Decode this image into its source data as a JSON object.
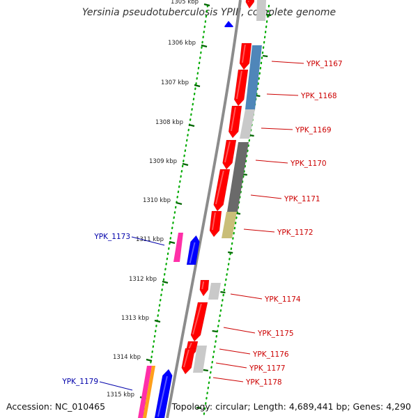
{
  "title": "Yersinia pseudotuberculosis YPIII, complete genome",
  "footer": {
    "accession": "Accession: NC_010465",
    "topology": "Topology: circular; Length: 4,689,441 bp; Genes: 4,290"
  },
  "colors": {
    "forward_gene": "#ff0000",
    "reverse_gene": "#0000ff",
    "backbone": "#8c8c8c",
    "tick": "#006600",
    "label_forward": "#cc0000",
    "label_reverse": "#0000aa",
    "track_blue": "#4f86b9",
    "track_gray_light": "#c9c9c9",
    "track_gray_dark": "#6a6a6a",
    "track_khaki": "#c9be78",
    "track_magenta": "#ff2fa8",
    "track_orange": "#ff9f1a"
  },
  "scale": {
    "ticks": [
      {
        "label": "1305 kbp"
      },
      {
        "label": "1306 kbp"
      },
      {
        "label": "1307 kbp"
      },
      {
        "label": "1308 kbp"
      },
      {
        "label": "1309 kbp"
      },
      {
        "label": "1310 kbp"
      },
      {
        "label": "1311 kbp"
      },
      {
        "label": "1312 kbp"
      },
      {
        "label": "1313 kbp"
      },
      {
        "label": "1314 kbp"
      },
      {
        "label": "1315 kbp"
      }
    ]
  },
  "genes_forward": [
    {
      "label": "YPK_1167"
    },
    {
      "label": "YPK_1168"
    },
    {
      "label": "YPK_1169"
    },
    {
      "label": "YPK_1170"
    },
    {
      "label": "YPK_1171"
    },
    {
      "label": "YPK_1172"
    },
    {
      "label": "YPK_1174"
    },
    {
      "label": "YPK_1175"
    },
    {
      "label": "YPK_1176"
    },
    {
      "label": "YPK_1177"
    },
    {
      "label": "YPK_1178"
    }
  ],
  "genes_reverse": [
    {
      "label": "YPK_1173"
    },
    {
      "label": "YPK_1179"
    }
  ]
}
